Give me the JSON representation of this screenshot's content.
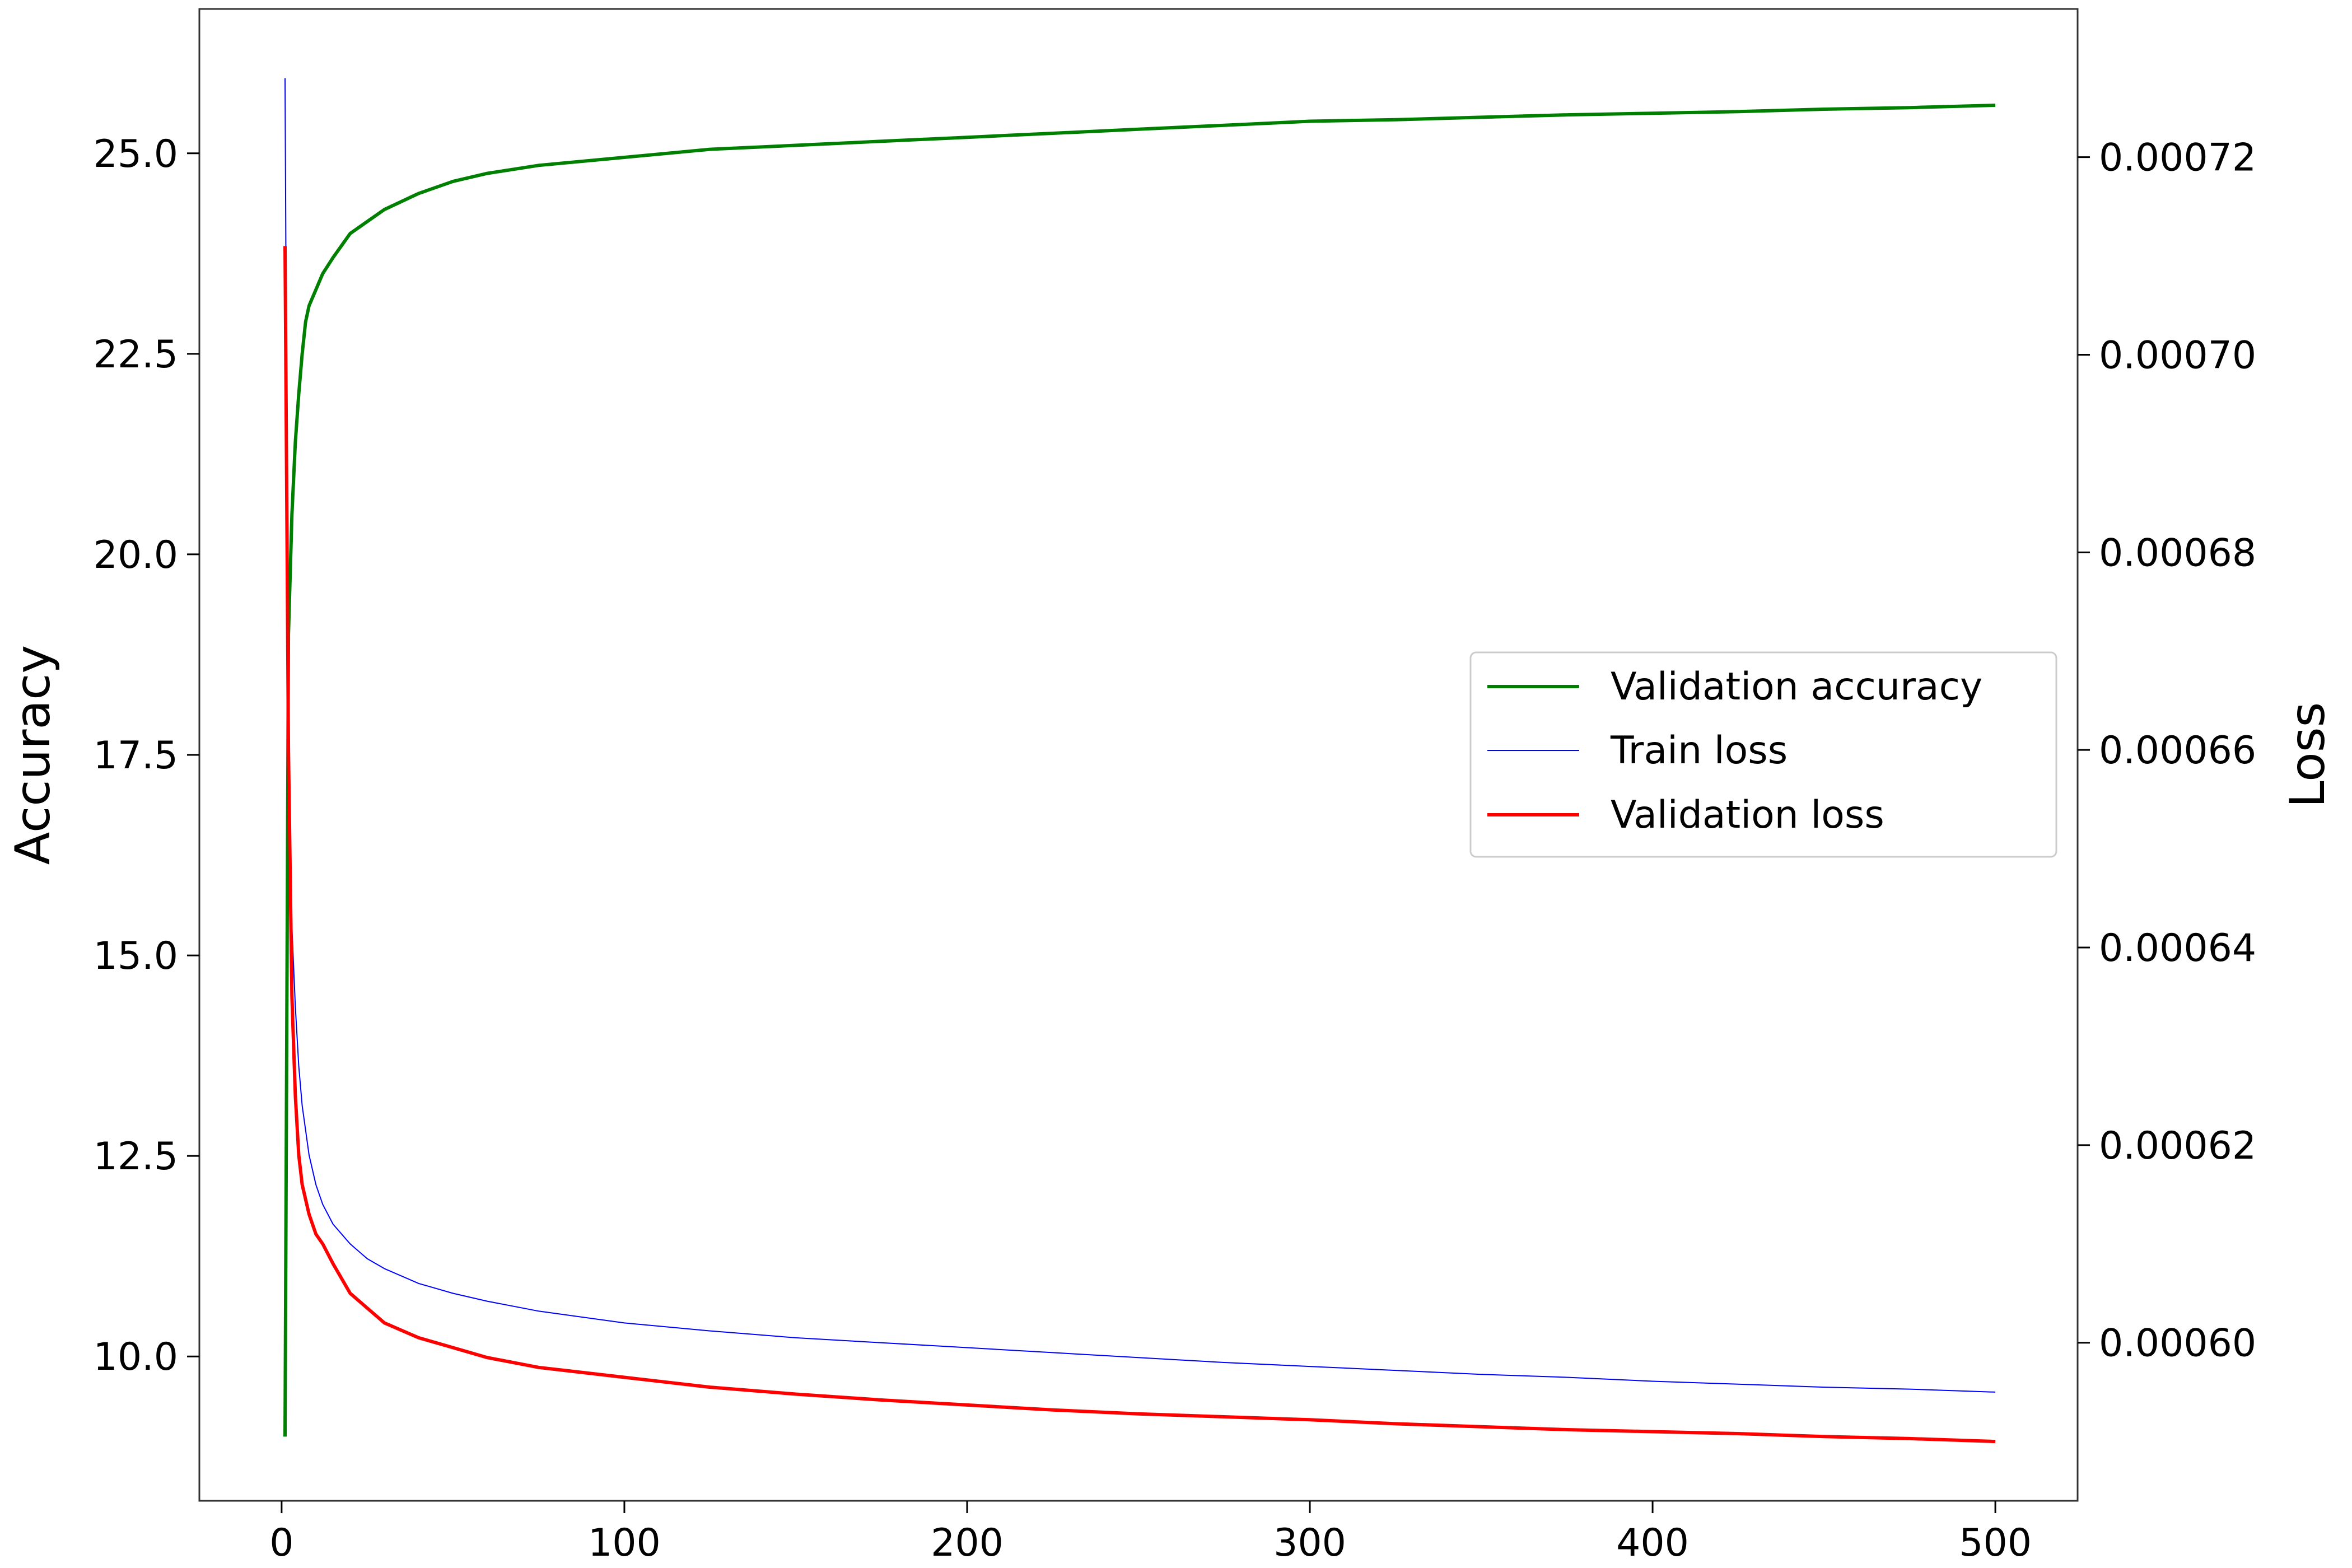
{
  "chart_data": {
    "type": "line",
    "x_axis": {
      "range": [
        -24,
        524
      ],
      "ticks": [
        0,
        100,
        200,
        300,
        400,
        500
      ],
      "tick_labels": [
        "0",
        "100",
        "200",
        "300",
        "400",
        "500"
      ],
      "label": ""
    },
    "y_left": {
      "label": "Accuracy",
      "range": [
        8.2,
        26.8
      ],
      "ticks": [
        10.0,
        12.5,
        15.0,
        17.5,
        20.0,
        22.5,
        25.0
      ],
      "tick_labels": [
        "10.0",
        "12.5",
        "15.0",
        "17.5",
        "20.0",
        "22.5",
        "25.0"
      ]
    },
    "y_right": {
      "label": "Loss",
      "range": [
        0.000584,
        0.000735
      ],
      "ticks": [
        0.0006,
        0.00062,
        0.00064,
        0.00066,
        0.00068,
        0.0007,
        0.00072
      ],
      "tick_labels": [
        "0.00060",
        "0.00062",
        "0.00064",
        "0.00066",
        "0.00068",
        "0.00070",
        "0.00072"
      ]
    },
    "grid": false,
    "legend_position": "center-right",
    "series": [
      {
        "name": "Validation accuracy",
        "axis": "left",
        "color": "#008000",
        "x": [
          1,
          2,
          3,
          4,
          5,
          6,
          7,
          8,
          10,
          12,
          15,
          20,
          25,
          30,
          40,
          50,
          60,
          75,
          100,
          125,
          150,
          175,
          200,
          225,
          250,
          275,
          300,
          325,
          350,
          375,
          400,
          425,
          450,
          475,
          500
        ],
        "y": [
          9.0,
          19.0,
          20.5,
          21.4,
          22.0,
          22.5,
          22.9,
          23.1,
          23.3,
          23.5,
          23.7,
          24.0,
          24.15,
          24.3,
          24.5,
          24.65,
          24.75,
          24.85,
          24.95,
          25.05,
          25.1,
          25.15,
          25.2,
          25.25,
          25.3,
          25.35,
          25.4,
          25.42,
          25.45,
          25.48,
          25.5,
          25.52,
          25.55,
          25.57,
          25.6
        ]
      },
      {
        "name": "Train loss",
        "axis": "right",
        "color": "#0000ff",
        "x": [
          1,
          2,
          3,
          4,
          5,
          6,
          8,
          10,
          12,
          15,
          20,
          25,
          30,
          40,
          50,
          60,
          75,
          100,
          125,
          150,
          175,
          200,
          225,
          250,
          275,
          300,
          325,
          350,
          375,
          400,
          425,
          450,
          475,
          500
        ],
        "y": [
          0.000728,
          0.000655,
          0.000642,
          0.000634,
          0.000628,
          0.000624,
          0.000619,
          0.000616,
          0.000614,
          0.000612,
          0.00061,
          0.0006085,
          0.0006075,
          0.000606,
          0.000605,
          0.0006042,
          0.0006032,
          0.000602,
          0.0006012,
          0.0006005,
          0.0006,
          0.0005995,
          0.000599,
          0.0005985,
          0.000598,
          0.0005976,
          0.0005972,
          0.0005968,
          0.0005965,
          0.0005961,
          0.0005958,
          0.0005955,
          0.0005953,
          0.000595
        ]
      },
      {
        "name": "Validation loss",
        "axis": "right",
        "color": "#ff0000",
        "x": [
          1,
          2,
          3,
          4,
          5,
          6,
          8,
          10,
          12,
          15,
          20,
          25,
          30,
          40,
          50,
          60,
          75,
          100,
          125,
          150,
          175,
          200,
          225,
          250,
          275,
          300,
          325,
          350,
          375,
          400,
          425,
          450,
          475,
          500
        ],
        "y": [
          0.000711,
          0.00066,
          0.000635,
          0.000625,
          0.000619,
          0.000616,
          0.000613,
          0.000611,
          0.00061,
          0.000608,
          0.000605,
          0.0006035,
          0.000602,
          0.0006005,
          0.0005995,
          0.0005985,
          0.0005975,
          0.0005965,
          0.0005955,
          0.0005948,
          0.0005942,
          0.0005937,
          0.0005932,
          0.0005928,
          0.0005925,
          0.0005922,
          0.0005918,
          0.0005915,
          0.0005912,
          0.000591,
          0.0005908,
          0.0005905,
          0.0005903,
          0.00059
        ]
      }
    ]
  }
}
